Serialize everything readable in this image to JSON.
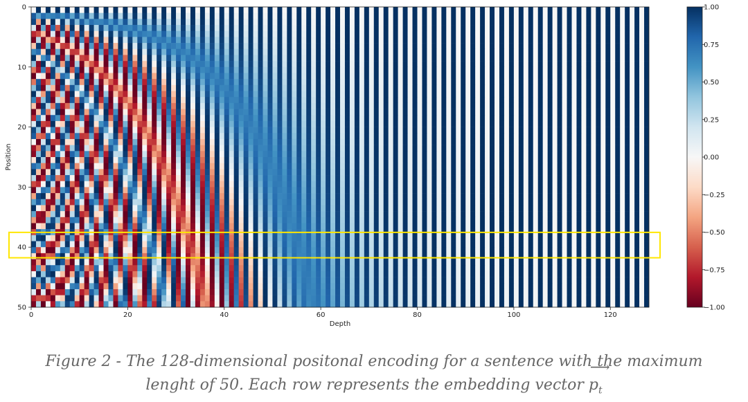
{
  "chart_data": {
    "type": "heatmap",
    "title": "",
    "xlabel": "Depth",
    "ylabel": "Position",
    "rows": 50,
    "cols": 128,
    "x_ticks": [
      "0",
      "20",
      "40",
      "60",
      "80",
      "100",
      "120"
    ],
    "y_ticks": [
      "0",
      "10",
      "20",
      "30",
      "40",
      "50"
    ],
    "value_range": [
      -1.0,
      1.0
    ],
    "colormap": "RdBu",
    "colorbar_ticks": [
      "1.00",
      "0.75",
      "0.50",
      "0.25",
      "0.00",
      "−0.25",
      "−0.50",
      "−0.75",
      "−1.00"
    ],
    "highlight_rows": [
      38,
      42
    ],
    "highlight_color": "#ffe600",
    "cmap_stops": [
      "#67001f",
      "#b2182b",
      "#d6604d",
      "#f4a582",
      "#fddbc7",
      "#f7f7f7",
      "#d1e5f0",
      "#92c5de",
      "#4393c3",
      "#2166ac",
      "#053061"
    ]
  },
  "caption": {
    "line1": "Figure 2 - The 128-dimensional positonal encoding for a sentence with the maximum",
    "line2": "lenght of 50. Each row represents the embedding vector",
    "vector_symbol": "p",
    "vector_subscript": "t",
    "vector_arrow": "⟶"
  }
}
